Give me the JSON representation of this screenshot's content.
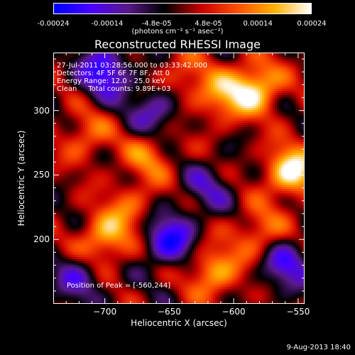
{
  "colorbar": {
    "ticks": [
      "-0.00024",
      "-0.00014",
      "-4.8e-05",
      "4.8e-05",
      "0.00014",
      "0.00024"
    ],
    "units": "(photons cm⁻² s⁻¹ asec⁻²)"
  },
  "chart_data": {
    "type": "heatmap",
    "title": "Reconstructed RHESSI Image",
    "xlabel": "Heliocentric X (arcsec)",
    "ylabel": "Heliocentric Y (arcsec)",
    "xlim": [
      -740,
      -545
    ],
    "ylim": [
      150,
      345
    ],
    "x_ticks": [
      -700,
      -650,
      -600,
      -550
    ],
    "y_ticks": [
      200,
      250,
      300
    ],
    "value_range": [
      -0.00024,
      0.00024
    ],
    "colormap": [
      "#0000ff",
      "#4b00ff",
      "#5a1a8a",
      "#000000",
      "#c80000",
      "#ff5000",
      "#ffb000",
      "#ffffff"
    ],
    "hot_spots": [
      {
        "x": -583,
        "y": 318,
        "v": 0.00022
      },
      {
        "x": -555,
        "y": 253,
        "v": 0.00024
      },
      {
        "x": -700,
        "y": 200,
        "v": 0.00018
      },
      {
        "x": -615,
        "y": 175,
        "v": 0.00017
      },
      {
        "x": -610,
        "y": 310,
        "v": 0.00014
      },
      {
        "x": -665,
        "y": 265,
        "v": 0.00012
      },
      {
        "x": -715,
        "y": 280,
        "v": 0.00011
      },
      {
        "x": -580,
        "y": 205,
        "v": 0.00013
      },
      {
        "x": -640,
        "y": 325,
        "v": 0.0001
      },
      {
        "x": -680,
        "y": 225,
        "v": 0.0001
      }
    ],
    "cold_spots": [
      {
        "x": -700,
        "y": 330,
        "v": -0.0002
      },
      {
        "x": -650,
        "y": 200,
        "v": -0.0002
      },
      {
        "x": -560,
        "y": 180,
        "v": -0.00016
      },
      {
        "x": -660,
        "y": 300,
        "v": -0.00014
      },
      {
        "x": -720,
        "y": 170,
        "v": -0.00012
      },
      {
        "x": -620,
        "y": 240,
        "v": -0.0001
      }
    ]
  },
  "info": {
    "line1": "27-Jul-2011 03:28:56.000 to 03:33:42.000",
    "line2": "Detectors: 4F 5F 6F 7F 8F, Att 0",
    "line3": "Energy Range: 12.0 - 25.0 keV",
    "line4": "Clean     Total counts: 9.89E+03",
    "peak": "Position of Peak = [-560,244]"
  },
  "timestamp": "9-Aug-2013 18:40"
}
